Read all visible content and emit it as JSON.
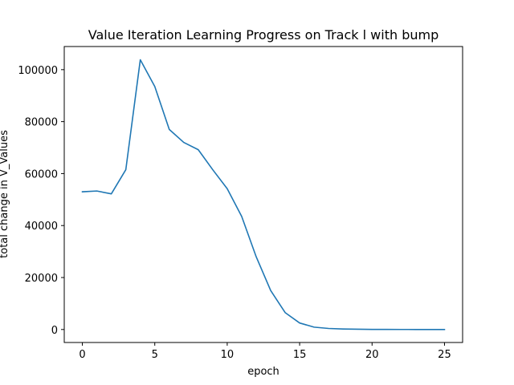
{
  "chart_data": {
    "type": "line",
    "title": "Value Iteration Learning Progress on Track l with bump",
    "xlabel": "epoch",
    "ylabel": "total change in V_Values",
    "xlim": [
      -1.25,
      26.25
    ],
    "ylim": [
      -5000,
      108900
    ],
    "x_ticks": [
      0,
      5,
      10,
      15,
      20,
      25
    ],
    "y_ticks": [
      0,
      20000,
      40000,
      60000,
      80000,
      100000
    ],
    "x_tick_labels": [
      "0",
      "5",
      "10",
      "15",
      "20",
      "25"
    ],
    "y_tick_labels": [
      "0",
      "20000",
      "40000",
      "60000",
      "80000",
      "100000"
    ],
    "grid": false,
    "series": [
      {
        "color": "#1f77b4",
        "x": [
          0,
          1,
          2,
          3,
          4,
          5,
          6,
          7,
          8,
          9,
          10,
          11,
          12,
          13,
          14,
          15,
          16,
          17,
          18,
          19,
          20,
          21,
          22,
          23,
          24,
          25
        ],
        "values": [
          53000,
          53300,
          52200,
          61500,
          103800,
          93500,
          77000,
          72000,
          69200,
          61500,
          54200,
          43500,
          28000,
          15000,
          6500,
          2500,
          900,
          400,
          200,
          100,
          50,
          30,
          20,
          10,
          5,
          0
        ]
      }
    ]
  }
}
